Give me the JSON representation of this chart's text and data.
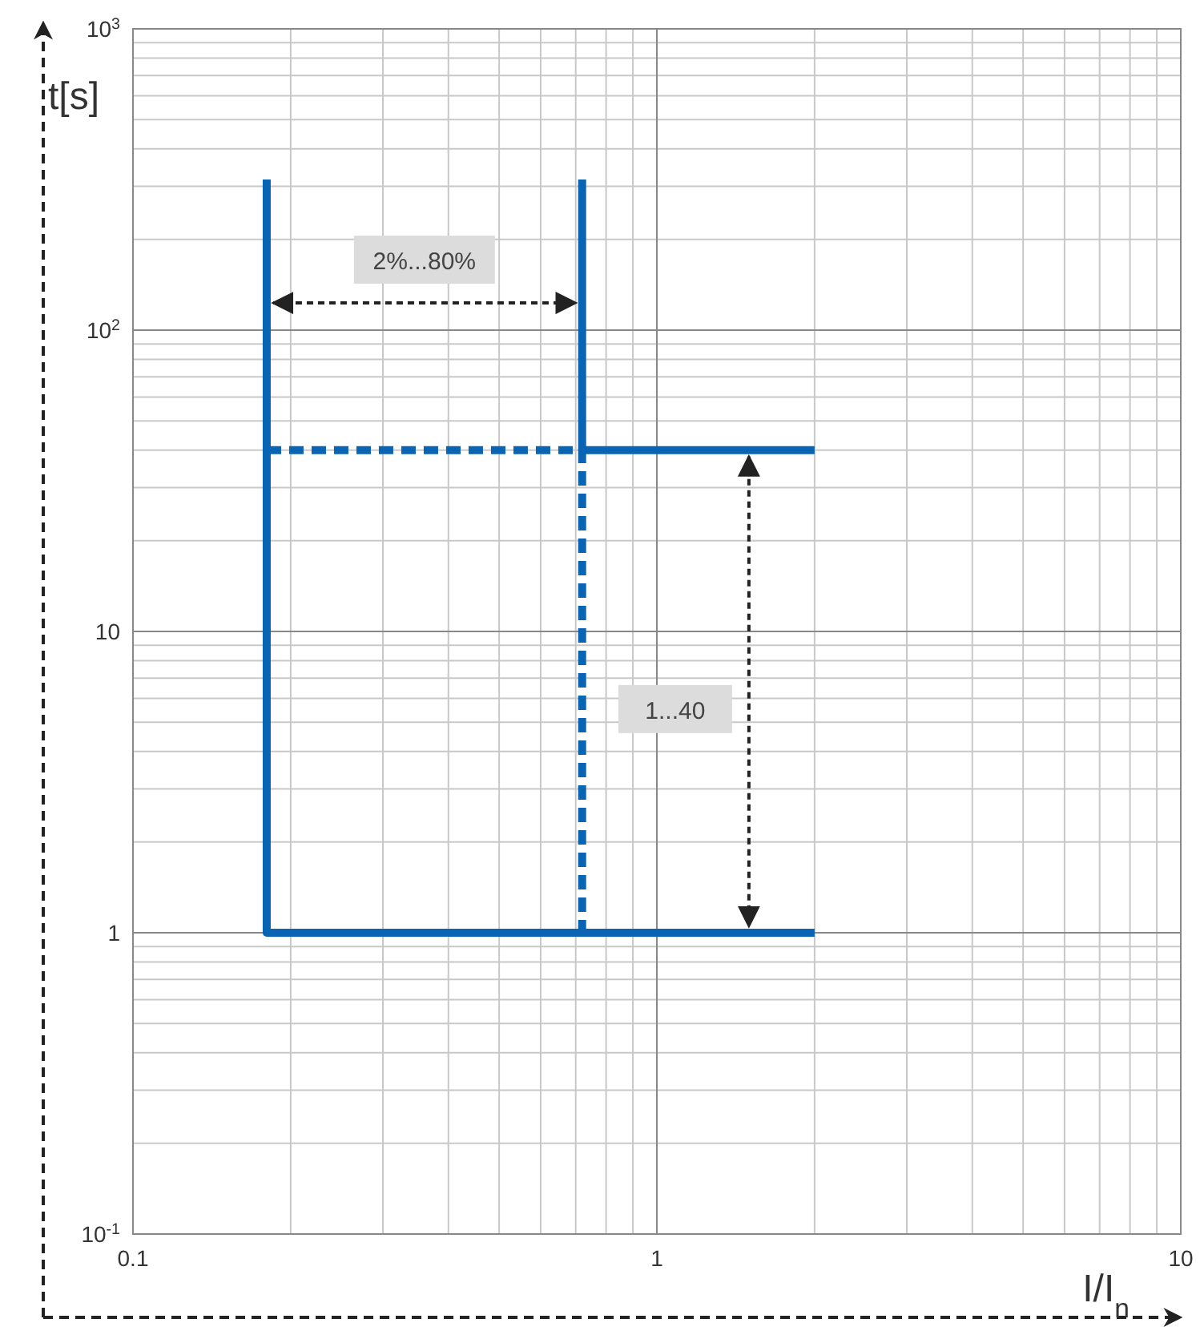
{
  "chart_data": {
    "type": "line",
    "xlabel": "I/I$_{n}$",
    "ylabel": "t[s]",
    "log": "xy",
    "grid": true,
    "xlim": [
      0.1,
      10
    ],
    "xticks": [
      0.1,
      1,
      10
    ],
    "ylim": [
      0.1,
      1000
    ],
    "yticks": [
      {
        "value": 0.1,
        "label": "10$^{-1}$"
      },
      1,
      10,
      {
        "value": 100,
        "label": "10$^{2}$"
      },
      {
        "value": 1000,
        "label": "10$^{3}$"
      }
    ],
    "series": [
      {
        "color": "#0a64b4",
        "x": [
          0.18,
          0.18,
          2
        ],
        "values": [
          316,
          1,
          1
        ],
        "line_style": "solid"
      },
      {
        "color": "#0a64b4",
        "x": [
          0.72,
          0.72,
          2
        ],
        "values": [
          316,
          40,
          40
        ],
        "line_style": "solid"
      },
      {
        "color": "#0a64b4",
        "x": [
          0.18,
          0.72,
          0.72
        ],
        "values": [
          40,
          40,
          1
        ],
        "line_style": "dashed"
      }
    ],
    "annotations": [
      "2%...80%",
      "1...40"
    ]
  }
}
